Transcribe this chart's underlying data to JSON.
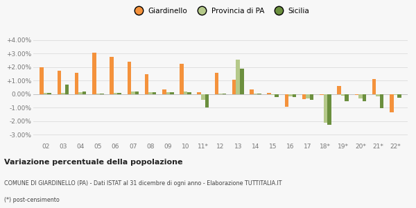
{
  "years": [
    "02",
    "03",
    "04",
    "05",
    "06",
    "07",
    "08",
    "09",
    "10",
    "11*",
    "12",
    "13",
    "14",
    "15",
    "16",
    "17",
    "18*",
    "19*",
    "20*",
    "21*",
    "22*"
  ],
  "giardinello": [
    2.0,
    1.75,
    1.6,
    3.05,
    2.75,
    2.4,
    1.45,
    0.35,
    2.25,
    0.15,
    1.6,
    1.05,
    0.35,
    0.1,
    -0.95,
    -0.35,
    -0.05,
    0.6,
    -0.05,
    1.1,
    -1.35
  ],
  "provincia_pa": [
    0.1,
    0.1,
    0.15,
    0.02,
    0.08,
    0.2,
    0.15,
    0.12,
    0.2,
    -0.4,
    0.05,
    2.55,
    0.02,
    -0.05,
    -0.15,
    -0.3,
    -2.1,
    -0.1,
    -0.3,
    -0.15,
    -0.05
  ],
  "sicilia": [
    0.1,
    0.7,
    0.2,
    0.02,
    0.1,
    0.2,
    0.15,
    0.12,
    0.15,
    -1.0,
    0.05,
    1.9,
    0.02,
    -0.2,
    -0.2,
    -0.4,
    -2.25,
    -0.5,
    -0.55,
    -1.05,
    -0.25
  ],
  "color_giardinello": "#f4923c",
  "color_provincia": "#b5c98a",
  "color_sicilia": "#6b8f3e",
  "title": "Variazione percentuale della popolazione",
  "subtitle": "COMUNE DI GIARDINELLO (PA) - Dati ISTAT al 31 dicembre di ogni anno - Elaborazione TUTTITALIA.IT",
  "footnote": "(*) post-censimento",
  "ylim": [
    -3.5,
    4.5
  ],
  "yticks": [
    -3.0,
    -2.0,
    -1.0,
    0.0,
    1.0,
    2.0,
    3.0,
    4.0
  ],
  "ytick_labels": [
    "-3.00%",
    "-2.00%",
    "-1.00%",
    "0.00%",
    "+1.00%",
    "+2.00%",
    "+3.00%",
    "+4.00%"
  ],
  "background_color": "#f7f7f7",
  "grid_color": "#e0e0e0",
  "bar_width": 0.22
}
